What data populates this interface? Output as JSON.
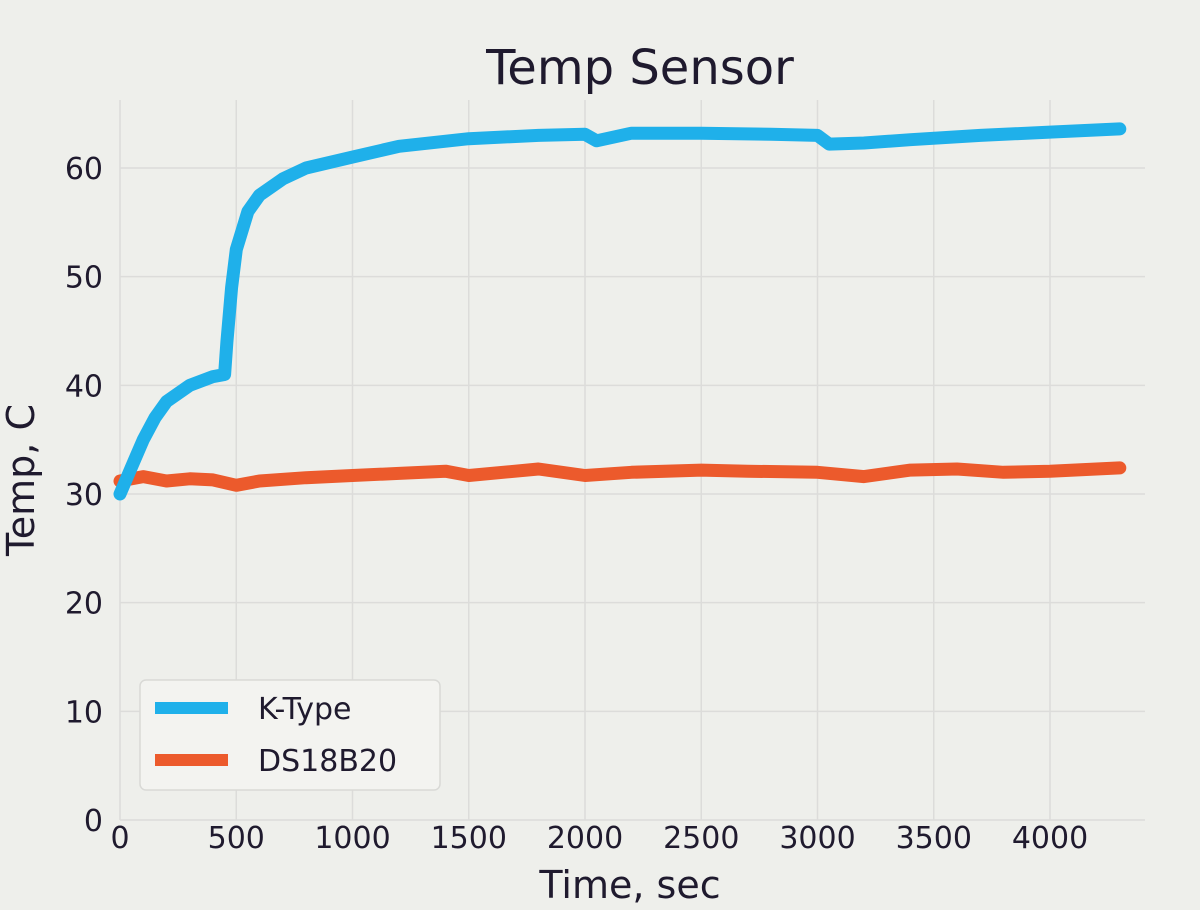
{
  "chart_data": {
    "type": "line",
    "title": "Temp Sensor",
    "xlabel": "Time, sec",
    "ylabel": "Temp, C",
    "xlim": [
      0,
      4300
    ],
    "ylim": [
      0,
      65
    ],
    "x_ticks": [
      0,
      500,
      1000,
      1500,
      2000,
      2500,
      3000,
      3500,
      4000
    ],
    "x_tick_labels": [
      "0",
      "500",
      "1000",
      "1500",
      "2000",
      "2500",
      "3000",
      "3500",
      "4000"
    ],
    "y_ticks": [
      0,
      10,
      20,
      30,
      40,
      50,
      60
    ],
    "y_tick_labels": [
      "0",
      "10",
      "20",
      "30",
      "40",
      "50",
      "60"
    ],
    "grid": true,
    "legend_position": "lower-left",
    "series": [
      {
        "name": "K-Type",
        "color": "#1fb0ea",
        "x": [
          0,
          50,
          100,
          150,
          200,
          300,
          400,
          450,
          460,
          480,
          500,
          550,
          600,
          700,
          800,
          1000,
          1200,
          1500,
          1800,
          2000,
          2050,
          2200,
          2500,
          2800,
          3000,
          3050,
          3200,
          3400,
          3700,
          4000,
          4300
        ],
        "y": [
          30.0,
          32.5,
          35.0,
          37.0,
          38.5,
          40.0,
          40.8,
          41.0,
          44.0,
          49.0,
          52.5,
          56.0,
          57.5,
          59.0,
          60.0,
          61.0,
          62.0,
          62.7,
          63.0,
          63.1,
          62.5,
          63.2,
          63.2,
          63.1,
          63.0,
          62.2,
          62.3,
          62.6,
          63.0,
          63.3,
          63.6
        ]
      },
      {
        "name": "DS18B20",
        "color": "#ec5a2c",
        "x": [
          0,
          100,
          200,
          300,
          400,
          500,
          600,
          800,
          1000,
          1200,
          1400,
          1500,
          1800,
          2000,
          2200,
          2500,
          2700,
          3000,
          3200,
          3400,
          3600,
          3800,
          4000,
          4300
        ],
        "y": [
          31.2,
          31.6,
          31.2,
          31.4,
          31.3,
          30.8,
          31.2,
          31.5,
          31.7,
          31.9,
          32.1,
          31.7,
          32.3,
          31.7,
          32.0,
          32.2,
          32.1,
          32.0,
          31.6,
          32.2,
          32.3,
          32.0,
          32.1,
          32.4
        ]
      }
    ]
  }
}
